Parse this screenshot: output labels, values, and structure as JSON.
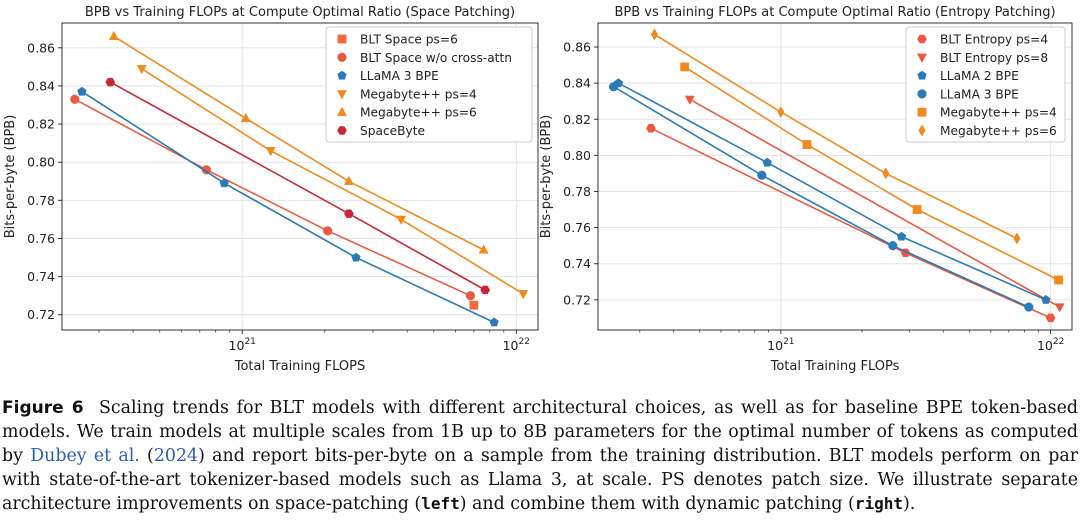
{
  "chart_data": [
    {
      "type": "scatter",
      "title": "BPB vs Training FLOPs at Compute Optimal Ratio (Space Patching)",
      "xlabel": "Total Training FLOPS",
      "ylabel": "Bits-per-byte (BPB)",
      "xscale": "log",
      "xlim": [
        2.2e+20,
        1.2e+22
      ],
      "ylim": [
        0.712,
        0.873
      ],
      "yticks": [
        "0.72",
        "0.74",
        "0.76",
        "0.78",
        "0.80",
        "0.82",
        "0.84",
        "0.86"
      ],
      "xtick_major": [
        {
          "base": "10",
          "exp": "21"
        },
        {
          "base": "10",
          "exp": "22"
        }
      ],
      "grid": true,
      "legend_position": "top-right",
      "series": [
        {
          "name": "BLT Space ps=6",
          "color": "#f4683b",
          "marker": "square",
          "x": [
            7e+21
          ],
          "y": [
            0.725
          ],
          "line": false
        },
        {
          "name": "BLT Space w/o cross-attn",
          "color": "#ea5a41",
          "marker": "circle",
          "x": [
            2.45e+20,
            7.4e+20,
            2.05e+21,
            6.8e+21
          ],
          "y": [
            0.833,
            0.796,
            0.764,
            0.73
          ],
          "line": true
        },
        {
          "name": "LLaMA 3 BPE",
          "color": "#2b7bb9",
          "marker": "pentagon",
          "x": [
            2.6e+20,
            8.6e+20,
            2.6e+21,
            8.3e+21
          ],
          "y": [
            0.837,
            0.789,
            0.75,
            0.716
          ],
          "line": true
        },
        {
          "name": "Megabyte++ ps=4",
          "color": "#f1891c",
          "marker": "triangle-down",
          "x": [
            4.3e+20,
            1.27e+21,
            3.8e+21,
            1.06e+22
          ],
          "y": [
            0.849,
            0.806,
            0.77,
            0.731
          ],
          "line": true
        },
        {
          "name": "Megabyte++ ps=6",
          "color": "#f1891c",
          "marker": "triangle-up",
          "x": [
            3.4e+20,
            1.03e+21,
            2.45e+21,
            7.6e+21
          ],
          "y": [
            0.866,
            0.823,
            0.79,
            0.754
          ],
          "line": true
        },
        {
          "name": "SpaceByte",
          "color": "#c9283b",
          "marker": "hexagon",
          "x": [
            3.3e+20,
            2.45e+21,
            7.7e+21
          ],
          "y": [
            0.842,
            0.773,
            0.733
          ],
          "line": true
        }
      ]
    },
    {
      "type": "scatter",
      "title": "BPB vs Training FLOPs at Compute Optimal Ratio (Entropy Patching)",
      "xlabel": "Total Training FLOPs",
      "ylabel": "Bits-per-byte (BPB)",
      "xscale": "log",
      "xlim": [
        2.1e+20,
        1.2e+22
      ],
      "ylim": [
        0.7033,
        0.8733
      ],
      "yticks": [
        "0.72",
        "0.74",
        "0.76",
        "0.78",
        "0.80",
        "0.82",
        "0.84",
        "0.86"
      ],
      "xtick_major": [
        {
          "base": "10",
          "exp": "21"
        },
        {
          "base": "10",
          "exp": "22"
        }
      ],
      "grid": true,
      "legend_position": "top-right",
      "series": [
        {
          "name": "BLT Entropy ps=4",
          "color": "#ea5a41",
          "marker": "hexagon",
          "x": [
            3.3e+20,
            2.9e+21,
            1e+22
          ],
          "y": [
            0.815,
            0.746,
            0.71
          ],
          "line": true
        },
        {
          "name": "BLT Entropy ps=8",
          "color": "#ea5a41",
          "marker": "triangle-down",
          "x": [
            4.6e+20,
            1.08e+22
          ],
          "y": [
            0.831,
            0.716
          ],
          "line": true
        },
        {
          "name": "LLaMA 2 BPE",
          "color": "#2b7bb9",
          "marker": "pentagon",
          "x": [
            2.5e+20,
            8.9e+20,
            2.8e+21,
            9.6e+21
          ],
          "y": [
            0.84,
            0.796,
            0.755,
            0.72
          ],
          "line": true
        },
        {
          "name": "LLaMA 3 BPE",
          "color": "#2b7bb9",
          "marker": "circle",
          "x": [
            2.4e+20,
            8.5e+20,
            2.6e+21,
            8.3e+21
          ],
          "y": [
            0.838,
            0.789,
            0.75,
            0.716
          ],
          "line": true
        },
        {
          "name": "Megabyte++ ps=4",
          "color": "#f1891c",
          "marker": "square",
          "x": [
            4.4e+20,
            1.25e+21,
            3.2e+21,
            1.07e+22
          ],
          "y": [
            0.849,
            0.806,
            0.77,
            0.731
          ],
          "line": true
        },
        {
          "name": "Megabyte++ ps=6",
          "color": "#f1891c",
          "marker": "diamond",
          "x": [
            3.4e+20,
            1e+21,
            2.45e+21,
            7.5e+21
          ],
          "y": [
            0.867,
            0.824,
            0.79,
            0.754
          ],
          "line": true
        }
      ]
    }
  ],
  "caption": {
    "label": "Figure 6",
    "text_before_cite": "Scaling trends for BLT models with different architectural choices, as well as for baseline BPE token-based models. We train models at multiple scales from 1B up to 8B parameters for the optimal number of tokens as computed by",
    "cite_authors": "Dubey et al.",
    "cite_open": "(",
    "cite_year": "2024",
    "cite_close": ")",
    "text_after_cite": "and report bits-per-byte on a sample from the training distribution. BLT models perform on par with state-of-the-art tokenizer-based models such as Llama 3, at scale. PS denotes patch size. We illustrate separate architecture improvements on space-patching (",
    "left_word": "left",
    "text_between": ") and combine them with dynamic patching (",
    "right_word": "right",
    "text_end": ")."
  }
}
